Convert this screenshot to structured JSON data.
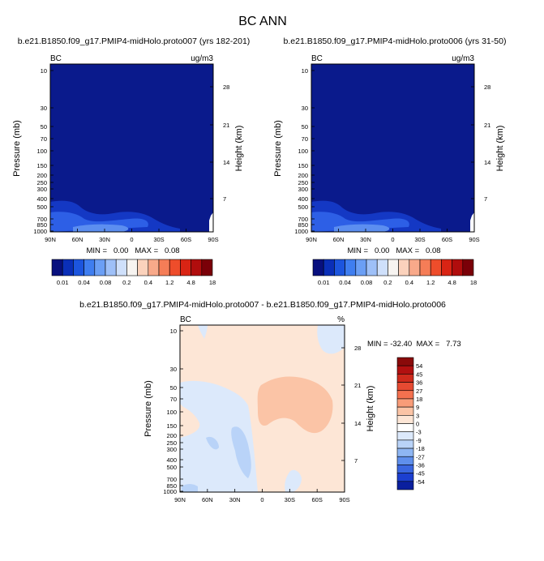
{
  "figure": {
    "title": "BC ANN",
    "colors": {
      "background": "#ffffff",
      "field_low": "#0a1a8c"
    }
  },
  "chart_data": [
    {
      "type": "heatmap",
      "title": "b.e21.B1850.f09_g17.PMIP4-midHolo.proto007 (yrs 182-201)",
      "variable_label": "BC",
      "units_label": "ug/m3",
      "xlabel": "",
      "ylabel": "Pressure (mb)",
      "ylabel_right": "Height (km)",
      "x_ticks": [
        "90N",
        "60N",
        "30N",
        "0",
        "30S",
        "60S",
        "90S"
      ],
      "y_ticks": [
        "10",
        "30",
        "50",
        "70",
        "100",
        "150",
        "200",
        "250",
        "300",
        "400",
        "500",
        "700",
        "850",
        "1000"
      ],
      "y_ticks_right": [
        "28",
        "21",
        "14",
        "7"
      ],
      "stats": {
        "min": "0.00",
        "max": "0.08",
        "text": "MIN =   0.00   MAX =   0.08"
      },
      "colorbar": {
        "orientation": "horizontal",
        "levels": [
          "0.01",
          "0.04",
          "0.08",
          "0.2",
          "0.4",
          "1.2",
          "4.8",
          "18"
        ],
        "colors": [
          "#08107e",
          "#0a2fb8",
          "#1c55de",
          "#3f7ef0",
          "#6b9ff5",
          "#9ec0f8",
          "#cfe0fb",
          "#f7f4f1",
          "#fbd2bc",
          "#f8a98a",
          "#f57d57",
          "#ee4d2b",
          "#d92414",
          "#b00d0d",
          "#7a0008"
        ]
      }
    },
    {
      "type": "heatmap",
      "title": "b.e21.B1850.f09_g17.PMIP4-midHolo.proto006 (yrs 31-50)",
      "variable_label": "BC",
      "units_label": "ug/m3",
      "xlabel": "",
      "ylabel": "Pressure (mb)",
      "ylabel_right": "Height (km)",
      "x_ticks": [
        "90N",
        "60N",
        "30N",
        "0",
        "30S",
        "60S",
        "90S"
      ],
      "y_ticks": [
        "10",
        "30",
        "50",
        "70",
        "100",
        "150",
        "200",
        "250",
        "300",
        "400",
        "500",
        "700",
        "850",
        "1000"
      ],
      "y_ticks_right": [
        "28",
        "21",
        "14",
        "7"
      ],
      "stats": {
        "min": "0.00",
        "max": "0.08",
        "text": "MIN =   0.00   MAX =   0.08"
      },
      "colorbar": {
        "orientation": "horizontal",
        "levels": [
          "0.01",
          "0.04",
          "0.08",
          "0.2",
          "0.4",
          "1.2",
          "4.8",
          "18"
        ],
        "colors": [
          "#08107e",
          "#0a2fb8",
          "#1c55de",
          "#3f7ef0",
          "#6b9ff5",
          "#9ec0f8",
          "#cfe0fb",
          "#f7f4f1",
          "#fbd2bc",
          "#f8a98a",
          "#f57d57",
          "#ee4d2b",
          "#d92414",
          "#b00d0d",
          "#7a0008"
        ]
      }
    },
    {
      "type": "heatmap",
      "title": "b.e21.B1850.f09_g17.PMIP4-midHolo.proto007 - b.e21.B1850.f09_g17.PMIP4-midHolo.proto006",
      "variable_label": "BC",
      "units_label": "%",
      "xlabel": "",
      "ylabel": "Pressure (mb)",
      "ylabel_right": "Height (km)",
      "x_ticks": [
        "90N",
        "60N",
        "30N",
        "0",
        "30S",
        "60S",
        "90S"
      ],
      "y_ticks": [
        "10",
        "30",
        "50",
        "70",
        "100",
        "150",
        "200",
        "250",
        "300",
        "400",
        "500",
        "700",
        "850",
        "1000"
      ],
      "y_ticks_right": [
        "28",
        "21",
        "14",
        "7"
      ],
      "stats": {
        "min": "-32.40",
        "max": "7.73",
        "text": "MIN = -32.40  MAX =   7.73"
      },
      "colorbar": {
        "orientation": "vertical",
        "levels": [
          "54",
          "45",
          "36",
          "27",
          "18",
          "9",
          "3",
          "0",
          "-3",
          "-9",
          "-18",
          "-27",
          "-36",
          "-45",
          "-54"
        ],
        "colors": [
          "#8a0a0a",
          "#b21010",
          "#cf2a1c",
          "#e64a32",
          "#f4714f",
          "#f89c78",
          "#fbc4a6",
          "#fde6d6",
          "#ffffff",
          "#dce9fb",
          "#b9d3f8",
          "#8eb6f3",
          "#5f8fec",
          "#3a66e0",
          "#1c3fd0",
          "#0a1f9e"
        ]
      }
    }
  ]
}
